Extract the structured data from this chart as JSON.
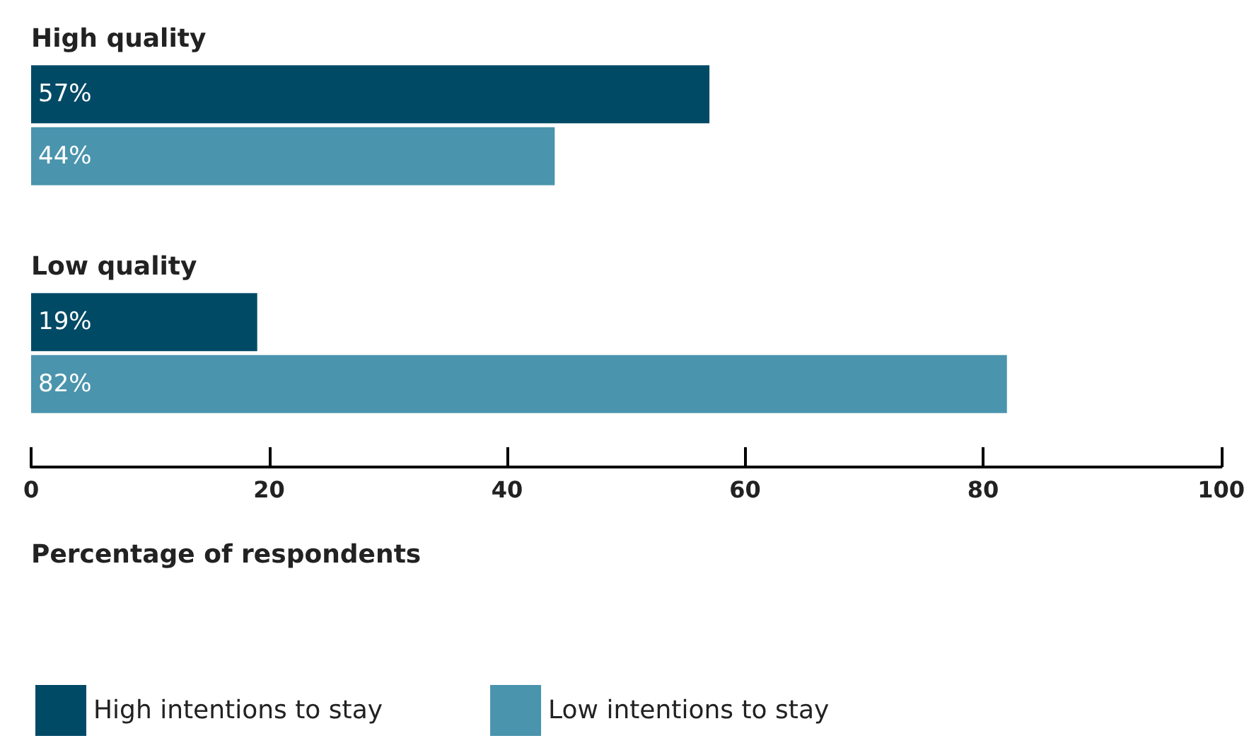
{
  "chart_data": {
    "type": "bar",
    "orientation": "horizontal",
    "categories": [
      "High quality",
      "Low quality"
    ],
    "series": [
      {
        "name": "High intentions to stay",
        "color": "#004a66",
        "values": [
          57,
          19
        ],
        "value_labels": [
          "57%",
          "19%"
        ]
      },
      {
        "name": "Low intentions to stay",
        "color": "#4a94ad",
        "values": [
          44,
          82
        ],
        "value_labels": [
          "44%",
          "82%"
        ]
      }
    ],
    "xlabel": "Percentage of respondents",
    "xlim": [
      0,
      100
    ],
    "xticks": [
      0,
      20,
      40,
      60,
      80,
      100
    ],
    "grid": false,
    "legend": "bottom left"
  }
}
